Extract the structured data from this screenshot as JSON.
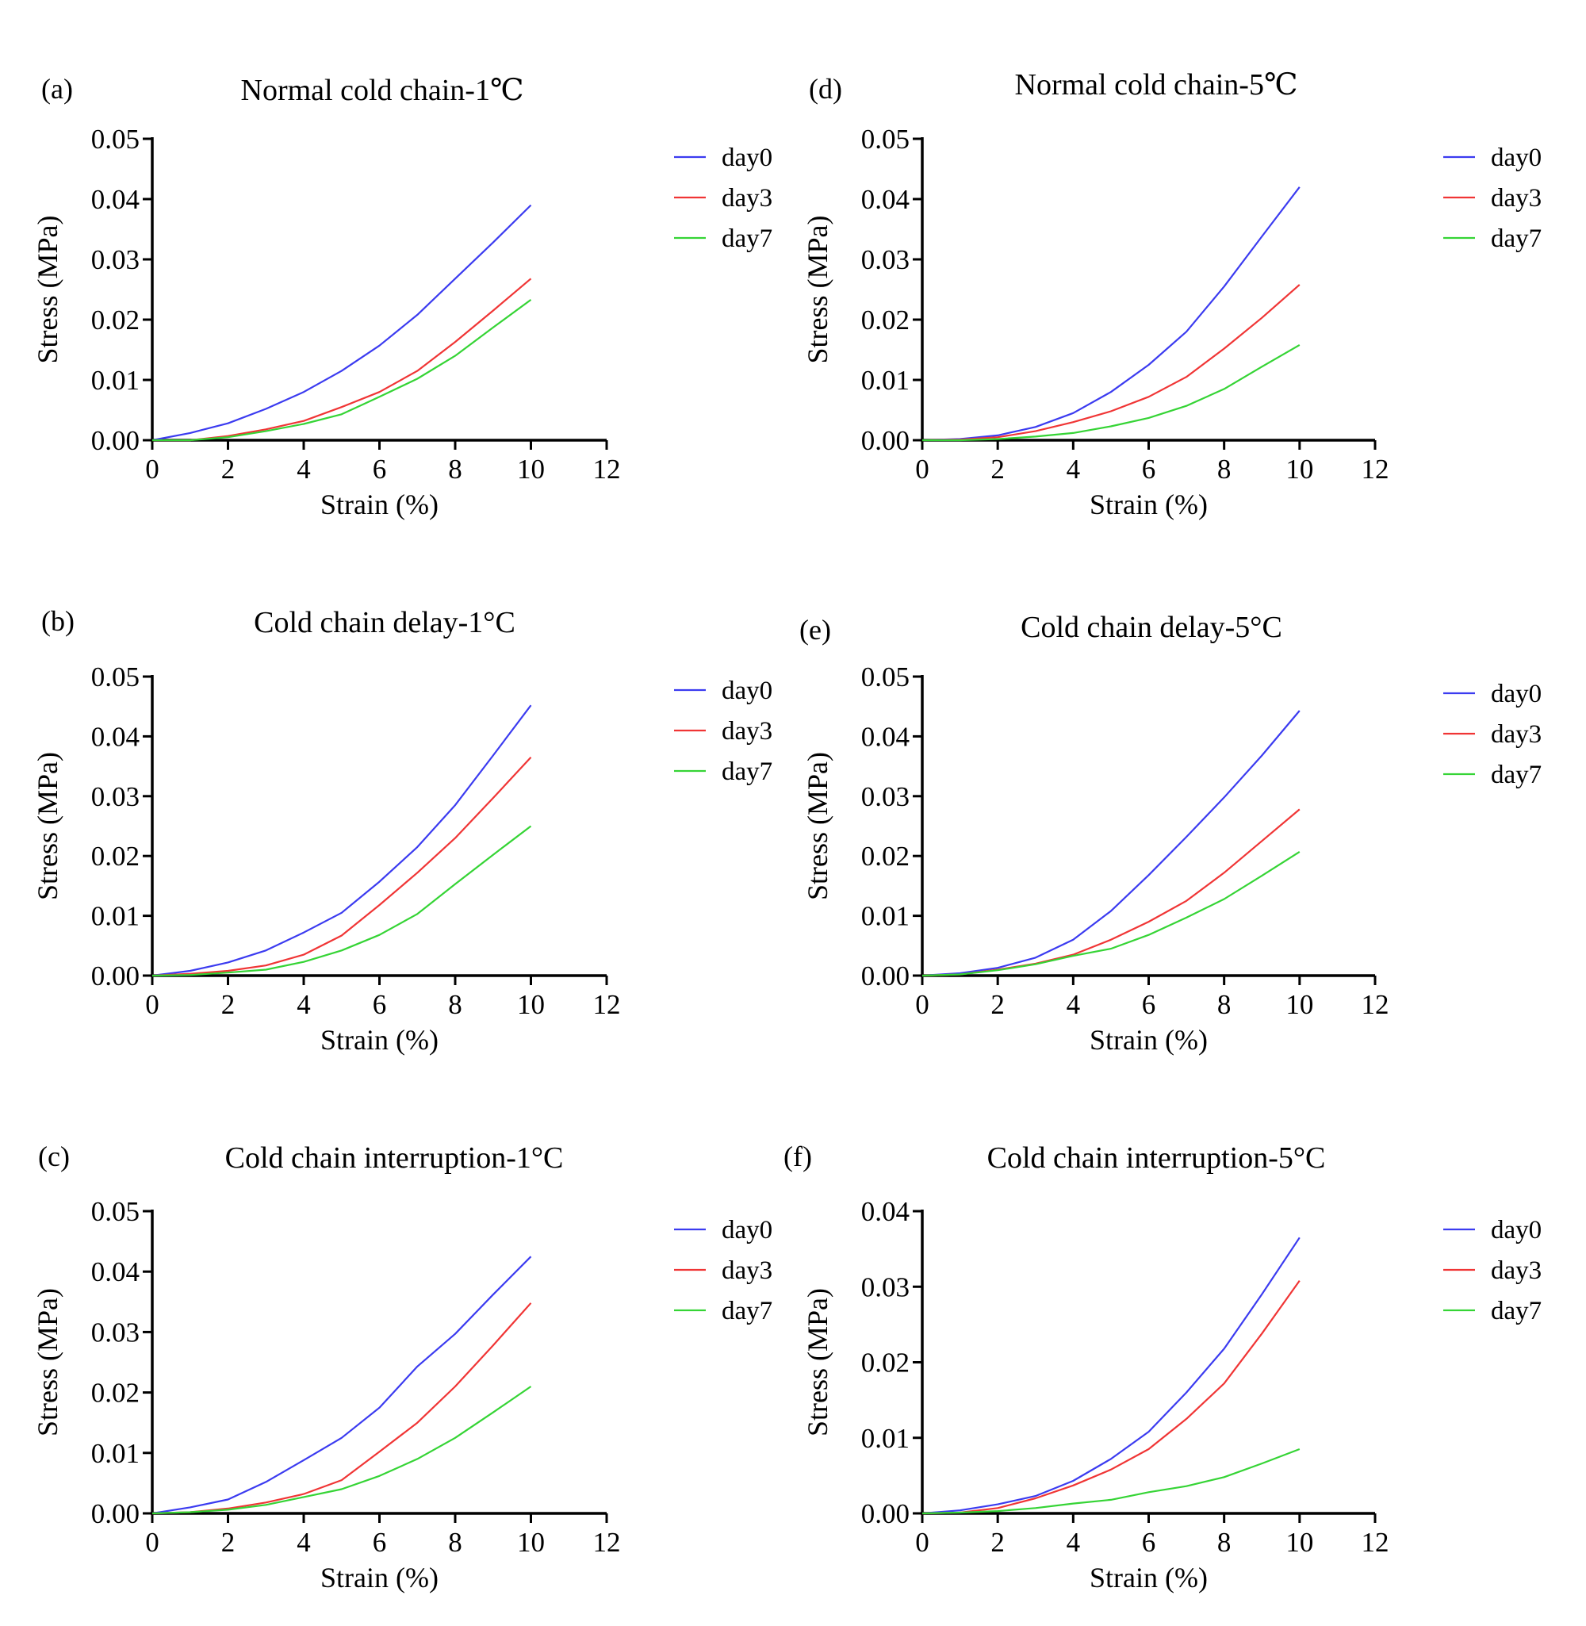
{
  "figure": {
    "colors": {
      "day0": "#3b3bf0",
      "day3": "#f03535",
      "day7": "#35d435"
    }
  },
  "chart_data": [
    {
      "id": "a",
      "panel_label": "(a)",
      "type": "line",
      "title": "Normal cold chain-1℃",
      "xlabel": "Strain (%)",
      "ylabel": "Stress (MPa)",
      "xlim": [
        0,
        12
      ],
      "ylim": [
        0,
        0.05
      ],
      "xticks": [
        0,
        2,
        4,
        6,
        8,
        10,
        12
      ],
      "yticks": [
        0.0,
        0.01,
        0.02,
        0.03,
        0.04,
        0.05
      ],
      "ytick_labels": [
        "0.00",
        "0.01",
        "0.02",
        "0.03",
        "0.04",
        "0.05"
      ],
      "x": [
        0,
        1,
        2,
        3,
        4,
        5,
        6,
        7,
        8,
        9,
        10
      ],
      "series": [
        {
          "name": "day0",
          "values": [
            0,
            0.0012,
            0.0028,
            0.0052,
            0.008,
            0.0115,
            0.0157,
            0.0208,
            0.0268,
            0.0328,
            0.039
          ]
        },
        {
          "name": "day3",
          "values": [
            0,
            0.0,
            0.0007,
            0.0018,
            0.0032,
            0.0055,
            0.008,
            0.0115,
            0.0163,
            0.0215,
            0.0268
          ]
        },
        {
          "name": "day7",
          "values": [
            0,
            0.0,
            0.0005,
            0.0015,
            0.0027,
            0.0043,
            0.0072,
            0.0102,
            0.014,
            0.0187,
            0.0233
          ]
        }
      ]
    },
    {
      "id": "b",
      "panel_label": "(b)",
      "type": "line",
      "title": "Cold chain delay-1°C",
      "xlabel": "Strain (%)",
      "ylabel": "Stress (MPa)",
      "xlim": [
        0,
        12
      ],
      "ylim": [
        0,
        0.05
      ],
      "xticks": [
        0,
        2,
        4,
        6,
        8,
        10,
        12
      ],
      "yticks": [
        0.0,
        0.01,
        0.02,
        0.03,
        0.04,
        0.05
      ],
      "ytick_labels": [
        "0.00",
        "0.01",
        "0.02",
        "0.03",
        "0.04",
        "0.05"
      ],
      "x": [
        0,
        1,
        2,
        3,
        4,
        5,
        6,
        7,
        8,
        9,
        10
      ],
      "series": [
        {
          "name": "day0",
          "values": [
            0,
            0.0008,
            0.0022,
            0.0042,
            0.0072,
            0.0105,
            0.0157,
            0.0215,
            0.0285,
            0.0368,
            0.0452
          ]
        },
        {
          "name": "day3",
          "values": [
            0,
            0.0003,
            0.0008,
            0.0017,
            0.0035,
            0.0067,
            0.0118,
            0.0172,
            0.023,
            0.0297,
            0.0365
          ]
        },
        {
          "name": "day7",
          "values": [
            0,
            0.0001,
            0.0005,
            0.001,
            0.0023,
            0.0042,
            0.0068,
            0.0103,
            0.0153,
            0.0202,
            0.025
          ]
        }
      ]
    },
    {
      "id": "c",
      "panel_label": "(c)",
      "type": "line",
      "title": "Cold chain interruption-1°C",
      "xlabel": "Strain (%)",
      "ylabel": "Stress (MPa)",
      "xlim": [
        0,
        12
      ],
      "ylim": [
        0,
        0.05
      ],
      "xticks": [
        0,
        2,
        4,
        6,
        8,
        10,
        12
      ],
      "yticks": [
        0.0,
        0.01,
        0.02,
        0.03,
        0.04,
        0.05
      ],
      "ytick_labels": [
        "0.00",
        "0.01",
        "0.02",
        "0.03",
        "0.04",
        "0.05"
      ],
      "x": [
        0,
        1,
        2,
        3,
        4,
        5,
        6,
        7,
        8,
        9,
        10
      ],
      "series": [
        {
          "name": "day0",
          "values": [
            0,
            0.001,
            0.0023,
            0.0052,
            0.0088,
            0.0125,
            0.0175,
            0.0243,
            0.0297,
            0.0362,
            0.0425
          ]
        },
        {
          "name": "day3",
          "values": [
            0,
            0.0002,
            0.0008,
            0.0018,
            0.0032,
            0.0055,
            0.0102,
            0.015,
            0.021,
            0.0278,
            0.0348
          ]
        },
        {
          "name": "day7",
          "values": [
            0,
            0.0002,
            0.0006,
            0.0014,
            0.0027,
            0.004,
            0.0062,
            0.009,
            0.0125,
            0.0167,
            0.021
          ]
        }
      ]
    },
    {
      "id": "d",
      "panel_label": "(d)",
      "type": "line",
      "title": "Normal cold chain-5℃",
      "xlabel": "Strain (%)",
      "ylabel": "Stress (MPa)",
      "xlim": [
        0,
        12
      ],
      "ylim": [
        0,
        0.05
      ],
      "xticks": [
        0,
        2,
        4,
        6,
        8,
        10,
        12
      ],
      "yticks": [
        0.0,
        0.01,
        0.02,
        0.03,
        0.04,
        0.05
      ],
      "ytick_labels": [
        "0.00",
        "0.01",
        "0.02",
        "0.03",
        "0.04",
        "0.05"
      ],
      "x": [
        0,
        1,
        2,
        3,
        4,
        5,
        6,
        7,
        8,
        9,
        10
      ],
      "series": [
        {
          "name": "day0",
          "values": [
            0,
            0.0002,
            0.0008,
            0.0022,
            0.0045,
            0.008,
            0.0125,
            0.018,
            0.0255,
            0.0338,
            0.042
          ]
        },
        {
          "name": "day3",
          "values": [
            0,
            0.0001,
            0.0005,
            0.0015,
            0.003,
            0.0048,
            0.0072,
            0.0105,
            0.0152,
            0.0203,
            0.0258
          ]
        },
        {
          "name": "day7",
          "values": [
            0,
            0.0,
            0.0002,
            0.0006,
            0.0012,
            0.0023,
            0.0037,
            0.0057,
            0.0085,
            0.0122,
            0.0158
          ]
        }
      ]
    },
    {
      "id": "e",
      "panel_label": "(e)",
      "type": "line",
      "title": "Cold chain delay-5°C",
      "xlabel": "Strain (%)",
      "ylabel": "Stress (MPa)",
      "xlim": [
        0,
        12
      ],
      "ylim": [
        0,
        0.05
      ],
      "xticks": [
        0,
        2,
        4,
        6,
        8,
        10,
        12
      ],
      "yticks": [
        0.0,
        0.01,
        0.02,
        0.03,
        0.04,
        0.05
      ],
      "ytick_labels": [
        "0.00",
        "0.01",
        "0.02",
        "0.03",
        "0.04",
        "0.05"
      ],
      "x": [
        0,
        1,
        2,
        3,
        4,
        5,
        6,
        7,
        8,
        9,
        10
      ],
      "series": [
        {
          "name": "day0",
          "values": [
            0,
            0.0004,
            0.0013,
            0.003,
            0.006,
            0.0108,
            0.0168,
            0.0232,
            0.0298,
            0.0368,
            0.0443
          ]
        },
        {
          "name": "day3",
          "values": [
            0,
            0.0002,
            0.001,
            0.002,
            0.0035,
            0.006,
            0.009,
            0.0125,
            0.0172,
            0.0225,
            0.0278
          ]
        },
        {
          "name": "day7",
          "values": [
            0,
            0.0002,
            0.0009,
            0.0019,
            0.0033,
            0.0045,
            0.0068,
            0.0097,
            0.0128,
            0.0167,
            0.0207
          ]
        }
      ]
    },
    {
      "id": "f",
      "panel_label": "(f)",
      "type": "line",
      "title": "Cold chain interruption-5°C",
      "xlabel": "Strain (%)",
      "ylabel": "Stress (MPa)",
      "xlim": [
        0,
        12
      ],
      "ylim": [
        0,
        0.04
      ],
      "xticks": [
        0,
        2,
        4,
        6,
        8,
        10,
        12
      ],
      "yticks": [
        0.0,
        0.01,
        0.02,
        0.03,
        0.04
      ],
      "ytick_labels": [
        "0.00",
        "0.01",
        "0.02",
        "0.03",
        "0.04"
      ],
      "x": [
        0,
        1,
        2,
        3,
        4,
        5,
        6,
        7,
        8,
        9,
        10
      ],
      "series": [
        {
          "name": "day0",
          "values": [
            0,
            0.0004,
            0.0012,
            0.0023,
            0.0043,
            0.0072,
            0.0108,
            0.016,
            0.0218,
            0.029,
            0.0365
          ]
        },
        {
          "name": "day3",
          "values": [
            0,
            0.0001,
            0.0007,
            0.002,
            0.0037,
            0.0058,
            0.0085,
            0.0125,
            0.0172,
            0.0238,
            0.0308
          ]
        },
        {
          "name": "day7",
          "values": [
            0,
            0.0001,
            0.0003,
            0.0007,
            0.0013,
            0.0018,
            0.0028,
            0.0036,
            0.0048,
            0.0066,
            0.0085
          ]
        }
      ]
    }
  ]
}
